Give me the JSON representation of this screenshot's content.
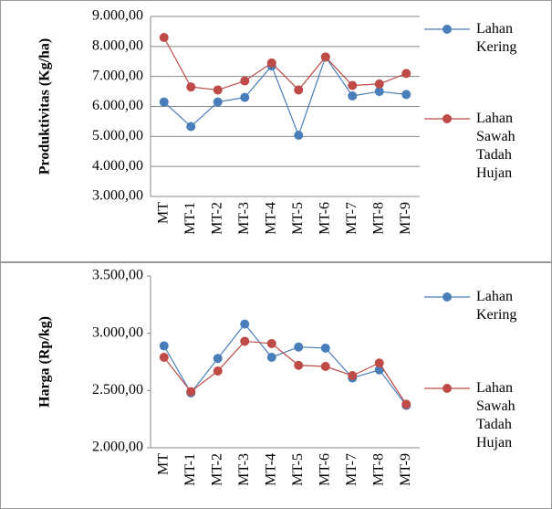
{
  "chart_data": [
    {
      "type": "line",
      "ylabel": "Produktivitas (Kg/ha)",
      "categories": [
        "MT",
        "MT-1",
        "MT-2",
        "MT-3",
        "MT-4",
        "MT-5",
        "MT-6",
        "MT-7",
        "MT-8",
        "MT-9"
      ],
      "series": [
        {
          "name": "Lahan Kering",
          "color": "#4a7ebb",
          "values": [
            6150,
            5330,
            6150,
            6300,
            7350,
            5040,
            7650,
            6350,
            6500,
            6400
          ]
        },
        {
          "name": "Lahan Sawah Tadah Hujan",
          "color": "#be4b48",
          "values": [
            8300,
            6650,
            6550,
            6850,
            7450,
            6550,
            7650,
            6700,
            6750,
            7100
          ]
        }
      ],
      "ylim": [
        3000,
        9000
      ],
      "yticks": [
        {
          "value": 3000,
          "label": "3.000,00"
        },
        {
          "value": 4000,
          "label": "4.000,00"
        },
        {
          "value": 5000,
          "label": "5.000,00"
        },
        {
          "value": 6000,
          "label": "6.000,00"
        },
        {
          "value": 7000,
          "label": "7.000,00"
        },
        {
          "value": 8000,
          "label": "8.000,00"
        },
        {
          "value": 9000,
          "label": "9.000,00"
        }
      ],
      "grid": true
    },
    {
      "type": "line",
      "ylabel": "Harga (Rp/kg)",
      "categories": [
        "MT",
        "MT-1",
        "MT-2",
        "MT-3",
        "MT-4",
        "MT-5",
        "MT-6",
        "MT-7",
        "MT-8",
        "MT-9"
      ],
      "series": [
        {
          "name": "Lahan Kering",
          "color": "#4a7ebb",
          "values": [
            2890,
            2480,
            2780,
            3080,
            2790,
            2880,
            2870,
            2610,
            2680,
            2370
          ]
        },
        {
          "name": "Lahan Sawah Tadah Hujan",
          "color": "#be4b48",
          "values": [
            2790,
            2490,
            2670,
            2930,
            2910,
            2720,
            2710,
            2630,
            2740,
            2380
          ]
        }
      ],
      "ylim": [
        2000,
        3500
      ],
      "yticks": [
        {
          "value": 2000,
          "label": "2.000,00"
        },
        {
          "value": 2500,
          "label": "2.500,00"
        },
        {
          "value": 3000,
          "label": "3.000,00"
        },
        {
          "value": 3500,
          "label": "3.500,00"
        }
      ],
      "grid": false
    }
  ]
}
